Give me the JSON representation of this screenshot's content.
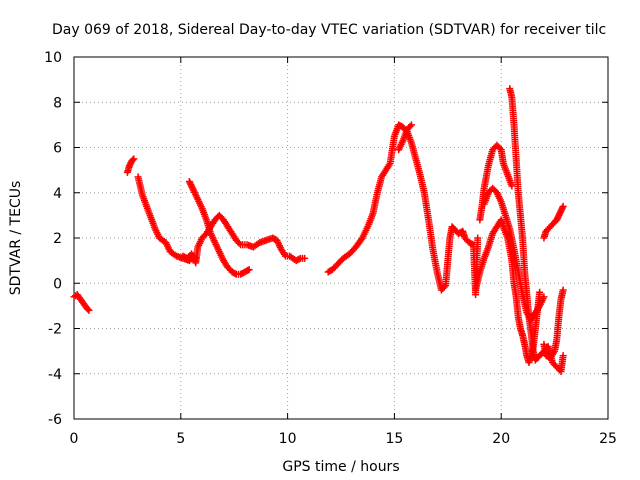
{
  "chart_data": {
    "type": "scatter",
    "title": "Day 069 of 2018, Sidereal Day-to-day VTEC variation (SDTVAR) for receiver tilc",
    "xlabel": "GPS time / hours",
    "ylabel": "SDTVAR / TECUs",
    "xlim": [
      0,
      25
    ],
    "ylim": [
      -6,
      10
    ],
    "xticks": [
      0,
      5,
      10,
      15,
      20,
      25
    ],
    "yticks": [
      -6,
      -4,
      -2,
      0,
      2,
      4,
      6,
      8,
      10
    ],
    "grid": true,
    "marker": "plus",
    "color": "#ff0000",
    "series": [
      {
        "name": "s1",
        "points": [
          [
            0.0,
            -0.6
          ],
          [
            0.15,
            -0.5
          ],
          [
            0.3,
            -0.7
          ],
          [
            0.45,
            -0.9
          ],
          [
            0.6,
            -1.1
          ],
          [
            0.7,
            -1.2
          ]
        ]
      },
      {
        "name": "s2",
        "points": [
          [
            2.5,
            4.9
          ],
          [
            2.6,
            5.2
          ],
          [
            2.7,
            5.4
          ],
          [
            2.8,
            5.5
          ]
        ]
      },
      {
        "name": "s3",
        "points": [
          [
            3.0,
            4.7
          ],
          [
            3.2,
            3.9
          ],
          [
            3.4,
            3.4
          ],
          [
            3.6,
            2.9
          ],
          [
            3.8,
            2.4
          ],
          [
            4.0,
            2.0
          ],
          [
            4.3,
            1.8
          ],
          [
            4.5,
            1.4
          ],
          [
            4.8,
            1.2
          ],
          [
            5.1,
            1.1
          ],
          [
            5.4,
            1.0
          ],
          [
            5.6,
            1.2
          ],
          [
            5.7,
            0.9
          ],
          [
            5.8,
            1.6
          ],
          [
            6.0,
            2.0
          ],
          [
            6.2,
            2.2
          ],
          [
            6.4,
            2.5
          ],
          [
            6.6,
            2.8
          ],
          [
            6.8,
            3.0
          ],
          [
            7.0,
            2.8
          ],
          [
            7.2,
            2.5
          ],
          [
            7.4,
            2.2
          ],
          [
            7.6,
            1.9
          ],
          [
            7.8,
            1.7
          ],
          [
            8.1,
            1.7
          ],
          [
            8.4,
            1.6
          ],
          [
            8.7,
            1.8
          ],
          [
            9.0,
            1.9
          ],
          [
            9.3,
            2.0
          ],
          [
            9.5,
            1.9
          ],
          [
            9.7,
            1.5
          ],
          [
            9.9,
            1.2
          ],
          [
            10.1,
            1.2
          ],
          [
            10.4,
            1.0
          ],
          [
            10.6,
            1.1
          ],
          [
            10.8,
            1.1
          ]
        ]
      },
      {
        "name": "s4",
        "points": [
          [
            5.4,
            4.5
          ],
          [
            5.5,
            4.3
          ],
          [
            5.6,
            4.1
          ],
          [
            5.8,
            3.7
          ],
          [
            6.0,
            3.3
          ],
          [
            6.2,
            2.8
          ],
          [
            6.4,
            2.2
          ],
          [
            6.6,
            1.8
          ],
          [
            6.8,
            1.4
          ],
          [
            7.0,
            1.0
          ],
          [
            7.2,
            0.7
          ],
          [
            7.4,
            0.5
          ],
          [
            7.6,
            0.4
          ],
          [
            7.8,
            0.4
          ],
          [
            8.0,
            0.5
          ],
          [
            8.2,
            0.6
          ]
        ]
      },
      {
        "name": "s5",
        "points": [
          [
            5.1,
            1.2
          ],
          [
            5.3,
            1.1
          ],
          [
            5.5,
            1.3
          ],
          [
            5.7,
            1.1
          ]
        ]
      },
      {
        "name": "s6",
        "points": [
          [
            11.9,
            0.5
          ],
          [
            12.1,
            0.6
          ],
          [
            12.3,
            0.8
          ],
          [
            12.6,
            1.1
          ],
          [
            12.9,
            1.3
          ],
          [
            13.2,
            1.6
          ],
          [
            13.5,
            2.0
          ],
          [
            13.8,
            2.6
          ],
          [
            14.0,
            3.1
          ],
          [
            14.2,
            4.0
          ],
          [
            14.4,
            4.7
          ],
          [
            14.6,
            5.0
          ],
          [
            14.8,
            5.3
          ],
          [
            15.0,
            6.5
          ],
          [
            15.2,
            7.0
          ],
          [
            15.4,
            6.9
          ],
          [
            15.6,
            6.7
          ],
          [
            15.8,
            6.2
          ],
          [
            16.0,
            5.5
          ],
          [
            16.2,
            4.8
          ],
          [
            16.4,
            4.0
          ],
          [
            16.6,
            2.8
          ],
          [
            16.8,
            1.5
          ],
          [
            17.0,
            0.5
          ],
          [
            17.2,
            -0.3
          ],
          [
            17.4,
            -0.1
          ],
          [
            17.5,
            1.0
          ],
          [
            17.6,
            2.0
          ],
          [
            17.7,
            2.5
          ],
          [
            17.8,
            2.4
          ],
          [
            18.0,
            2.2
          ],
          [
            18.2,
            2.3
          ],
          [
            18.3,
            2.0
          ],
          [
            18.5,
            1.8
          ],
          [
            18.7,
            1.7
          ],
          [
            18.8,
            -0.5
          ],
          [
            18.9,
            2.0
          ]
        ]
      },
      {
        "name": "s7",
        "points": [
          [
            15.2,
            5.9
          ],
          [
            15.4,
            6.3
          ],
          [
            15.6,
            6.8
          ],
          [
            15.8,
            7.0
          ]
        ]
      },
      {
        "name": "s8",
        "points": [
          [
            19.0,
            2.8
          ],
          [
            19.1,
            3.4
          ],
          [
            19.2,
            4.2
          ],
          [
            19.4,
            5.2
          ],
          [
            19.6,
            5.9
          ],
          [
            19.8,
            6.1
          ],
          [
            20.0,
            5.9
          ],
          [
            20.1,
            5.3
          ],
          [
            20.3,
            4.8
          ],
          [
            20.5,
            4.3
          ]
        ]
      },
      {
        "name": "s9",
        "points": [
          [
            18.8,
            -0.3
          ],
          [
            19.0,
            0.5
          ],
          [
            19.2,
            1.1
          ],
          [
            19.4,
            1.6
          ],
          [
            19.6,
            2.2
          ],
          [
            19.8,
            2.5
          ],
          [
            20.0,
            2.8
          ],
          [
            20.1,
            2.5
          ],
          [
            20.3,
            2.0
          ],
          [
            20.5,
            1.0
          ],
          [
            20.6,
            0.0
          ],
          [
            20.7,
            -0.6
          ],
          [
            20.8,
            -1.5
          ],
          [
            20.9,
            -2.0
          ],
          [
            21.0,
            -2.3
          ],
          [
            21.1,
            -2.7
          ],
          [
            21.2,
            -3.2
          ],
          [
            21.3,
            -3.5
          ],
          [
            21.4,
            -3.2
          ],
          [
            21.5,
            -2.8
          ],
          [
            21.6,
            -2.0
          ],
          [
            21.7,
            -1.2
          ],
          [
            21.8,
            -0.4
          ]
        ]
      },
      {
        "name": "s10",
        "points": [
          [
            19.2,
            3.5
          ],
          [
            19.4,
            4.0
          ],
          [
            19.6,
            4.2
          ],
          [
            19.8,
            4.0
          ],
          [
            20.0,
            3.6
          ],
          [
            20.2,
            3.0
          ],
          [
            20.4,
            2.4
          ],
          [
            20.6,
            1.5
          ],
          [
            20.8,
            0.5
          ],
          [
            21.0,
            -0.5
          ],
          [
            21.2,
            -1.3
          ],
          [
            21.4,
            -1.6
          ],
          [
            21.6,
            -1.3
          ],
          [
            21.8,
            -1.0
          ],
          [
            22.0,
            -0.6
          ]
        ]
      },
      {
        "name": "s11",
        "points": [
          [
            20.4,
            8.6
          ],
          [
            20.5,
            8.2
          ],
          [
            20.6,
            7.0
          ],
          [
            20.7,
            5.5
          ],
          [
            20.8,
            4.0
          ],
          [
            20.9,
            3.0
          ],
          [
            21.0,
            2.0
          ],
          [
            21.1,
            0.5
          ],
          [
            21.2,
            -0.5
          ],
          [
            21.3,
            -1.5
          ],
          [
            21.4,
            -2.2
          ],
          [
            21.5,
            -3.0
          ],
          [
            21.6,
            -3.4
          ],
          [
            21.8,
            -3.2
          ],
          [
            22.0,
            -3.0
          ],
          [
            22.2,
            -2.8
          ],
          [
            22.4,
            -3.5
          ],
          [
            22.6,
            -3.7
          ],
          [
            22.8,
            -3.9
          ],
          [
            22.9,
            -3.2
          ]
        ]
      },
      {
        "name": "s12",
        "points": [
          [
            22.0,
            -2.7
          ],
          [
            22.1,
            -3.2
          ],
          [
            22.3,
            -3.3
          ],
          [
            22.5,
            -3.0
          ],
          [
            22.6,
            -2.5
          ],
          [
            22.7,
            -1.5
          ],
          [
            22.8,
            -0.7
          ],
          [
            22.9,
            -0.3
          ]
        ]
      },
      {
        "name": "s13",
        "points": [
          [
            22.0,
            2.0
          ],
          [
            22.1,
            2.3
          ],
          [
            22.3,
            2.5
          ],
          [
            22.5,
            2.7
          ],
          [
            22.6,
            2.8
          ],
          [
            22.7,
            3.0
          ],
          [
            22.8,
            3.2
          ],
          [
            22.9,
            3.4
          ]
        ]
      }
    ]
  }
}
